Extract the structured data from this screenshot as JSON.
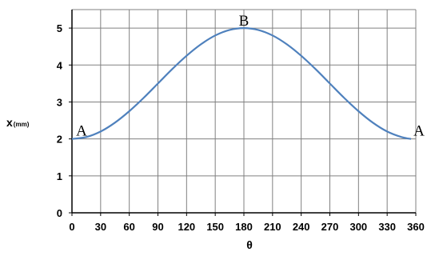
{
  "chart_data": {
    "type": "line",
    "xlabel": "θ",
    "ylabel": "x",
    "ylabel_unit": "(mm)",
    "xlim": [
      0,
      360
    ],
    "ylim": [
      0,
      5.5
    ],
    "x_ticks": [
      0,
      30,
      60,
      90,
      120,
      150,
      180,
      210,
      240,
      270,
      300,
      330,
      360
    ],
    "y_ticks": [
      0,
      1,
      2,
      3,
      4,
      5
    ],
    "grid": true,
    "series": [
      {
        "color": "#4f81bd",
        "x": [
          0,
          15,
          30,
          45,
          60,
          75,
          90,
          105,
          120,
          135,
          150,
          165,
          180,
          195,
          210,
          225,
          240,
          255,
          270,
          285,
          300,
          315,
          330,
          345,
          355
        ],
        "y": [
          2.0,
          2.05,
          2.2,
          2.44,
          2.75,
          3.11,
          3.5,
          3.89,
          4.25,
          4.56,
          4.8,
          4.95,
          5.0,
          4.95,
          4.8,
          4.56,
          4.25,
          3.89,
          3.5,
          3.11,
          2.75,
          2.44,
          2.2,
          2.05,
          2.0
        ]
      }
    ],
    "annotations": [
      {
        "text": "A",
        "x": 0,
        "y": 2.0
      },
      {
        "text": "B",
        "x": 180,
        "y": 5.0
      },
      {
        "text": "A",
        "x": 355,
        "y": 2.0
      }
    ]
  }
}
